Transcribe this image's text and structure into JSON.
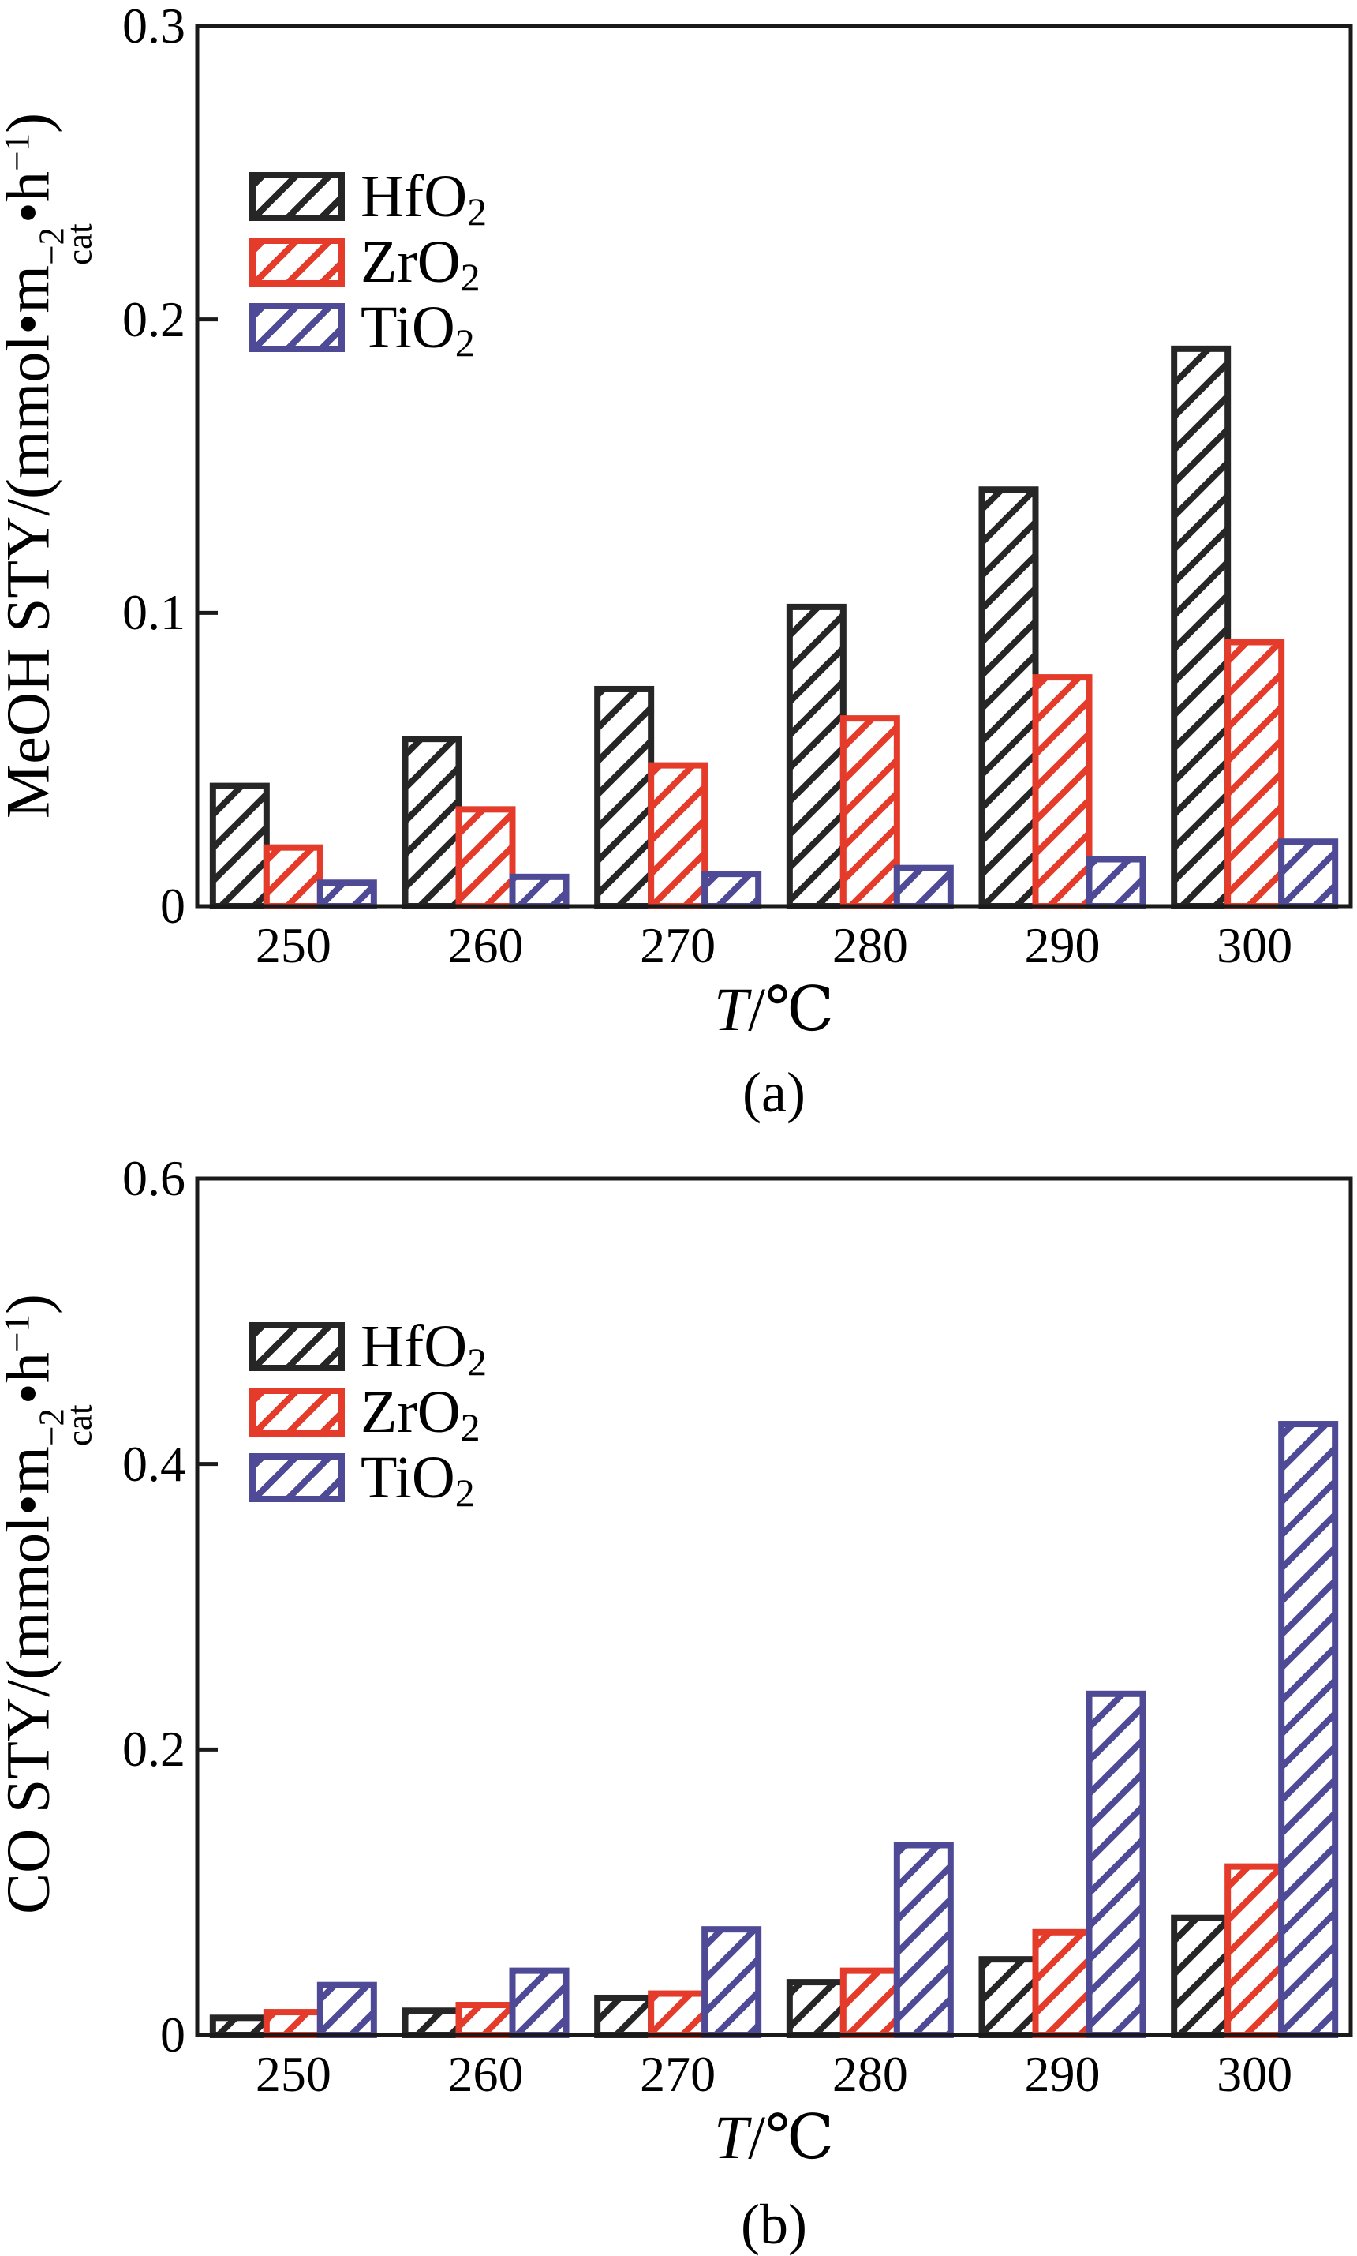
{
  "figure": {
    "background": "#ffffff",
    "frame_color": "#1a1a1a",
    "text_color": "#000000"
  },
  "chart_data": [
    {
      "panel": "a",
      "type": "bar",
      "caption": "(a)",
      "xlabel_parts": {
        "t": "T",
        "unit": "/℃"
      },
      "ylabel_parts": {
        "pre": "MeOH STY/(mmol•m",
        "sup": "−2",
        "sub": "cat",
        "mid": "•h",
        "sup2": "−1",
        "post": ")"
      },
      "categories": [
        "250",
        "260",
        "270",
        "280",
        "290",
        "300"
      ],
      "series": [
        {
          "label_base": "HfO",
          "label_sub": "2",
          "color": "#262626",
          "values": [
            0.041,
            0.057,
            0.074,
            0.102,
            0.142,
            0.19
          ]
        },
        {
          "label_base": "ZrO",
          "label_sub": "2",
          "color": "#e53b2a",
          "values": [
            0.02,
            0.033,
            0.048,
            0.064,
            0.078,
            0.09
          ]
        },
        {
          "label_base": "TiO",
          "label_sub": "2",
          "color": "#4e4a96",
          "values": [
            0.008,
            0.01,
            0.011,
            0.013,
            0.016,
            0.022
          ]
        }
      ],
      "ylim": [
        0,
        0.3
      ],
      "ytick_values": [
        0,
        0.1,
        0.2,
        0.3
      ],
      "ytick_labels": [
        "0",
        "0.1",
        "0.2",
        "0.3"
      ],
      "legend_position": "upper-left",
      "grid": false
    },
    {
      "panel": "b",
      "type": "bar",
      "caption": "(b)",
      "xlabel_parts": {
        "t": "T",
        "unit": "/℃"
      },
      "ylabel_parts": {
        "pre": "CO STY/(mmol•m",
        "sup": "−2",
        "sub": "cat",
        "mid": "•h",
        "sup2": "−1",
        "post": ")"
      },
      "categories": [
        "250",
        "260",
        "270",
        "280",
        "290",
        "300"
      ],
      "series": [
        {
          "label_base": "HfO",
          "label_sub": "2",
          "color": "#262626",
          "values": [
            0.012,
            0.017,
            0.026,
            0.037,
            0.053,
            0.082
          ]
        },
        {
          "label_base": "ZrO",
          "label_sub": "2",
          "color": "#e53b2a",
          "values": [
            0.016,
            0.021,
            0.029,
            0.045,
            0.072,
            0.118
          ]
        },
        {
          "label_base": "TiO",
          "label_sub": "2",
          "color": "#4e4a96",
          "values": [
            0.035,
            0.045,
            0.074,
            0.133,
            0.239,
            0.428
          ]
        }
      ],
      "ylim": [
        0,
        0.6
      ],
      "ytick_values": [
        0,
        0.2,
        0.4,
        0.6
      ],
      "ytick_labels": [
        "0",
        "0.2",
        "0.4",
        "0.6"
      ],
      "legend_position": "upper-left",
      "grid": false
    }
  ]
}
